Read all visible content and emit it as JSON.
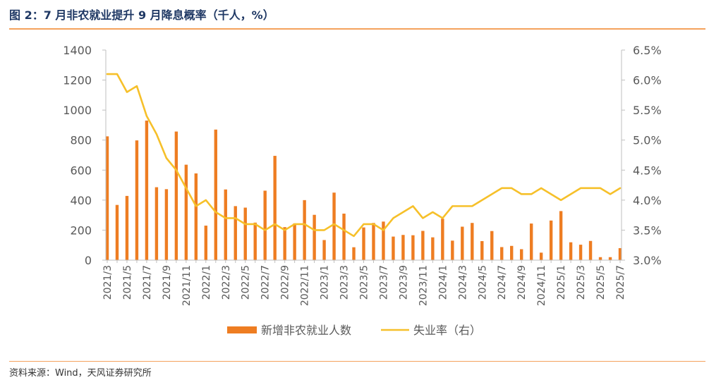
{
  "figure": {
    "title": "图 2：7 月非农就业提升 9 月降息概率（千人，%）",
    "source": "资料来源：Wind，天风证券研究所",
    "colors": {
      "bar": "#ee7d22",
      "line": "#f6c02a",
      "accent": "#f4a25c",
      "title": "#1f3864",
      "text": "#595959"
    }
  },
  "chart_data": {
    "type": "bar",
    "title": "图 2：7 月非农就业提升 9 月降息概率（千人，%）",
    "categories": [
      "2021/3",
      "2021/4",
      "2021/5",
      "2021/6",
      "2021/7",
      "2021/8",
      "2021/9",
      "2021/10",
      "2021/11",
      "2021/12",
      "2022/1",
      "2022/2",
      "2022/3",
      "2022/4",
      "2022/5",
      "2022/6",
      "2022/7",
      "2022/8",
      "2022/9",
      "2022/10",
      "2022/11",
      "2022/12",
      "2023/1",
      "2023/2",
      "2023/3",
      "2023/4",
      "2023/5",
      "2023/6",
      "2023/7",
      "2023/8",
      "2023/9",
      "2023/10",
      "2023/11",
      "2023/12",
      "2024/1",
      "2024/2",
      "2024/3",
      "2024/4",
      "2024/5",
      "2024/6",
      "2024/7",
      "2024/8",
      "2024/9",
      "2024/10",
      "2024/11",
      "2024/12",
      "2025/1",
      "2025/2",
      "2025/3",
      "2025/4",
      "2025/5",
      "2025/6",
      "2025/7"
    ],
    "x_tick_labels": [
      "2021/3",
      "2021/5",
      "2021/7",
      "2021/9",
      "2021/11",
      "2022/1",
      "2022/3",
      "2022/5",
      "2022/7",
      "2022/9",
      "2022/11",
      "2023/1",
      "2023/3",
      "2023/5",
      "2023/7",
      "2023/9",
      "2023/11",
      "2024/1",
      "2024/3",
      "2024/5",
      "2024/7",
      "2024/9",
      "2024/11",
      "2025/1",
      "2025/3",
      "2025/5",
      "2025/7"
    ],
    "series": [
      {
        "name": "新增非农就业人数",
        "type": "bar",
        "axis": "left",
        "values": [
          825,
          368,
          428,
          798,
          930,
          486,
          473,
          857,
          636,
          578,
          230,
          870,
          471,
          360,
          350,
          250,
          463,
          695,
          220,
          245,
          400,
          302,
          134,
          450,
          310,
          86,
          218,
          248,
          257,
          157,
          168,
          166,
          195,
          152,
          276,
          130,
          223,
          248,
          127,
          194,
          87,
          95,
          73,
          244,
          50,
          264,
          327,
          119,
          103,
          128,
          20,
          20,
          80
        ]
      },
      {
        "name": "失业率（右）",
        "type": "line",
        "axis": "right",
        "values": [
          6.1,
          6.1,
          5.8,
          5.9,
          5.4,
          5.1,
          4.7,
          4.5,
          4.2,
          3.9,
          4.0,
          3.8,
          3.7,
          3.7,
          3.6,
          3.6,
          3.5,
          3.6,
          3.5,
          3.6,
          3.6,
          3.5,
          3.5,
          3.6,
          3.5,
          3.4,
          3.6,
          3.6,
          3.5,
          3.7,
          3.8,
          3.9,
          3.7,
          3.8,
          3.7,
          3.9,
          3.9,
          3.9,
          4.0,
          4.1,
          4.2,
          4.2,
          4.1,
          4.1,
          4.2,
          4.1,
          4.0,
          4.1,
          4.2,
          4.2,
          4.2,
          4.1,
          4.2
        ]
      }
    ],
    "y_left": {
      "min": 0,
      "max": 1400,
      "ticks": [
        0,
        200,
        400,
        600,
        800,
        1000,
        1200,
        1400
      ]
    },
    "y_right": {
      "min": 3.0,
      "max": 6.5,
      "ticks": [
        3.0,
        3.5,
        4.0,
        4.5,
        5.0,
        5.5,
        6.0,
        6.5
      ],
      "tick_labels": [
        "3.0%",
        "3.5%",
        "4.0%",
        "4.5%",
        "5.0%",
        "5.5%",
        "6.0%",
        "6.5%"
      ]
    },
    "grid": false,
    "legend_position": "bottom"
  }
}
